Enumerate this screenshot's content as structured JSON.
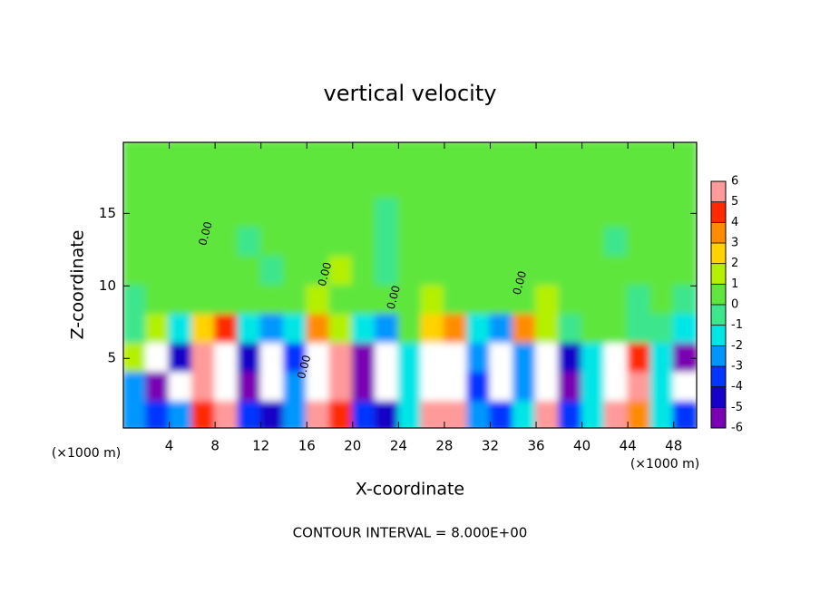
{
  "chart_data": {
    "type": "contour",
    "title": "vertical velocity",
    "xlabel": "X-coordinate",
    "ylabel": "Z-coordinate",
    "x_unit": "(×1000 m)",
    "footnote": "CONTOUR INTERVAL = 8.000E+00",
    "xlim": [
      0,
      50
    ],
    "ylim": [
      0.2,
      19.9
    ],
    "xticks": [
      4,
      8,
      12,
      16,
      20,
      24,
      28,
      32,
      36,
      40,
      44,
      48
    ],
    "yticks": [
      5,
      10,
      15
    ],
    "x": [
      1,
      3,
      5,
      7,
      9,
      11,
      13,
      15,
      17,
      19,
      21,
      23,
      25,
      27,
      29,
      31,
      33,
      35,
      37,
      39,
      41,
      43,
      45,
      47,
      49
    ],
    "z": [
      19,
      17,
      15,
      13,
      11,
      9,
      7,
      5,
      3,
      1
    ],
    "values": [
      [
        0.3,
        0.4,
        0.3,
        0.2,
        0.3,
        0.4,
        0.3,
        0.3,
        0.2,
        0.3,
        0.4,
        0.3,
        0.2,
        0.3,
        0.4,
        0.3,
        0.3,
        0.2,
        0.3,
        0.4,
        0.3,
        0.3,
        0.2,
        0.3,
        0.3
      ],
      [
        0.3,
        0.2,
        0.4,
        0.3,
        0.2,
        0.3,
        0.5,
        0.3,
        0.2,
        0.3,
        0.3,
        0.4,
        0.3,
        0.2,
        0.3,
        0.4,
        0.2,
        0.3,
        0.3,
        0.2,
        0.4,
        0.3,
        0.2,
        0.3,
        0.3
      ],
      [
        0.2,
        0.3,
        0.3,
        0.2,
        0.4,
        0.5,
        0.3,
        0.2,
        0.3,
        0.4,
        0.2,
        -0.2,
        0.3,
        0.2,
        0.5,
        0.3,
        0.2,
        0.4,
        0.3,
        0.2,
        0.3,
        0.4,
        0.2,
        0.3,
        0.2
      ],
      [
        0.3,
        0.2,
        0.4,
        0.3,
        0.2,
        -0.3,
        0.4,
        0.5,
        0.3,
        0.6,
        0.7,
        -0.3,
        0.5,
        0.3,
        0.6,
        0.4,
        0.3,
        0.2,
        0.4,
        0.3,
        0.2,
        -0.2,
        0.3,
        0.2,
        0.3
      ],
      [
        0.2,
        0.4,
        0.3,
        0.2,
        0.5,
        0.3,
        -0.4,
        0.6,
        0.8,
        1.2,
        0.9,
        -0.5,
        0.7,
        0.4,
        0.3,
        0.5,
        0.6,
        0.3,
        0.2,
        0.4,
        0.3,
        0.2,
        0.3,
        0.4,
        0.3
      ],
      [
        -0.3,
        0.5,
        0.3,
        0.6,
        0.4,
        0.3,
        0.5,
        0.7,
        1.1,
        0.6,
        0.4,
        0.8,
        0.5,
        1.2,
        0.7,
        0.4,
        0.3,
        0.6,
        1.4,
        0.2,
        0.3,
        0.5,
        -0.4,
        0.2,
        -0.3
      ],
      [
        -0.5,
        1.5,
        -1.5,
        2.5,
        4.5,
        -1.8,
        -2.5,
        -1.2,
        3.5,
        1.5,
        -1.5,
        -2.2,
        0.5,
        2.8,
        3.2,
        -1.2,
        -2.2,
        3.5,
        1.2,
        -0.8,
        0.5,
        0.6,
        -0.4,
        -0.8,
        -1.2
      ],
      [
        1.5,
        -7,
        -5,
        6,
        9,
        -5,
        -8,
        -4,
        9,
        5,
        -6,
        -8,
        -2,
        8,
        9,
        -3,
        -7,
        -3,
        8,
        -5,
        -2,
        8,
        4,
        -2,
        -6
      ],
      [
        -3,
        -6,
        -7,
        5,
        9,
        -6,
        -8,
        -3,
        9,
        5,
        -6,
        -8,
        -2,
        8,
        9,
        -4,
        -8,
        -3,
        8,
        -6,
        -2,
        9,
        5,
        -2,
        -7
      ],
      [
        -3,
        -4,
        -3,
        4,
        6,
        -4,
        -5,
        -3,
        6,
        4,
        -4,
        -5,
        -2,
        5,
        6,
        -3,
        -4,
        -2,
        5,
        -4,
        -2,
        5,
        3,
        -2,
        -4
      ]
    ],
    "clim": [
      -6,
      6
    ],
    "colorbar_ticks": [
      -6,
      -5,
      -4,
      -3,
      -2,
      -1,
      0,
      1,
      2,
      3,
      4,
      5,
      6
    ],
    "colors": [
      "#7a00b4",
      "#1400c8",
      "#0034ff",
      "#0096ff",
      "#00e6e6",
      "#3ce68c",
      "#5ee63c",
      "#b4f000",
      "#ffd200",
      "#ff8c00",
      "#ff2a00",
      "#ff9a9a"
    ],
    "overflow_color": "#ffffff",
    "annotations": [
      {
        "text": "0.00",
        "x": 7.2,
        "y": 13.6
      },
      {
        "text": "0.00",
        "x": 17.6,
        "y": 10.8
      },
      {
        "text": "0.00",
        "x": 23.6,
        "y": 9.2
      },
      {
        "text": "0.00",
        "x": 34.6,
        "y": 10.2
      },
      {
        "text": "0.00",
        "x": 15.8,
        "y": 4.4
      }
    ]
  }
}
